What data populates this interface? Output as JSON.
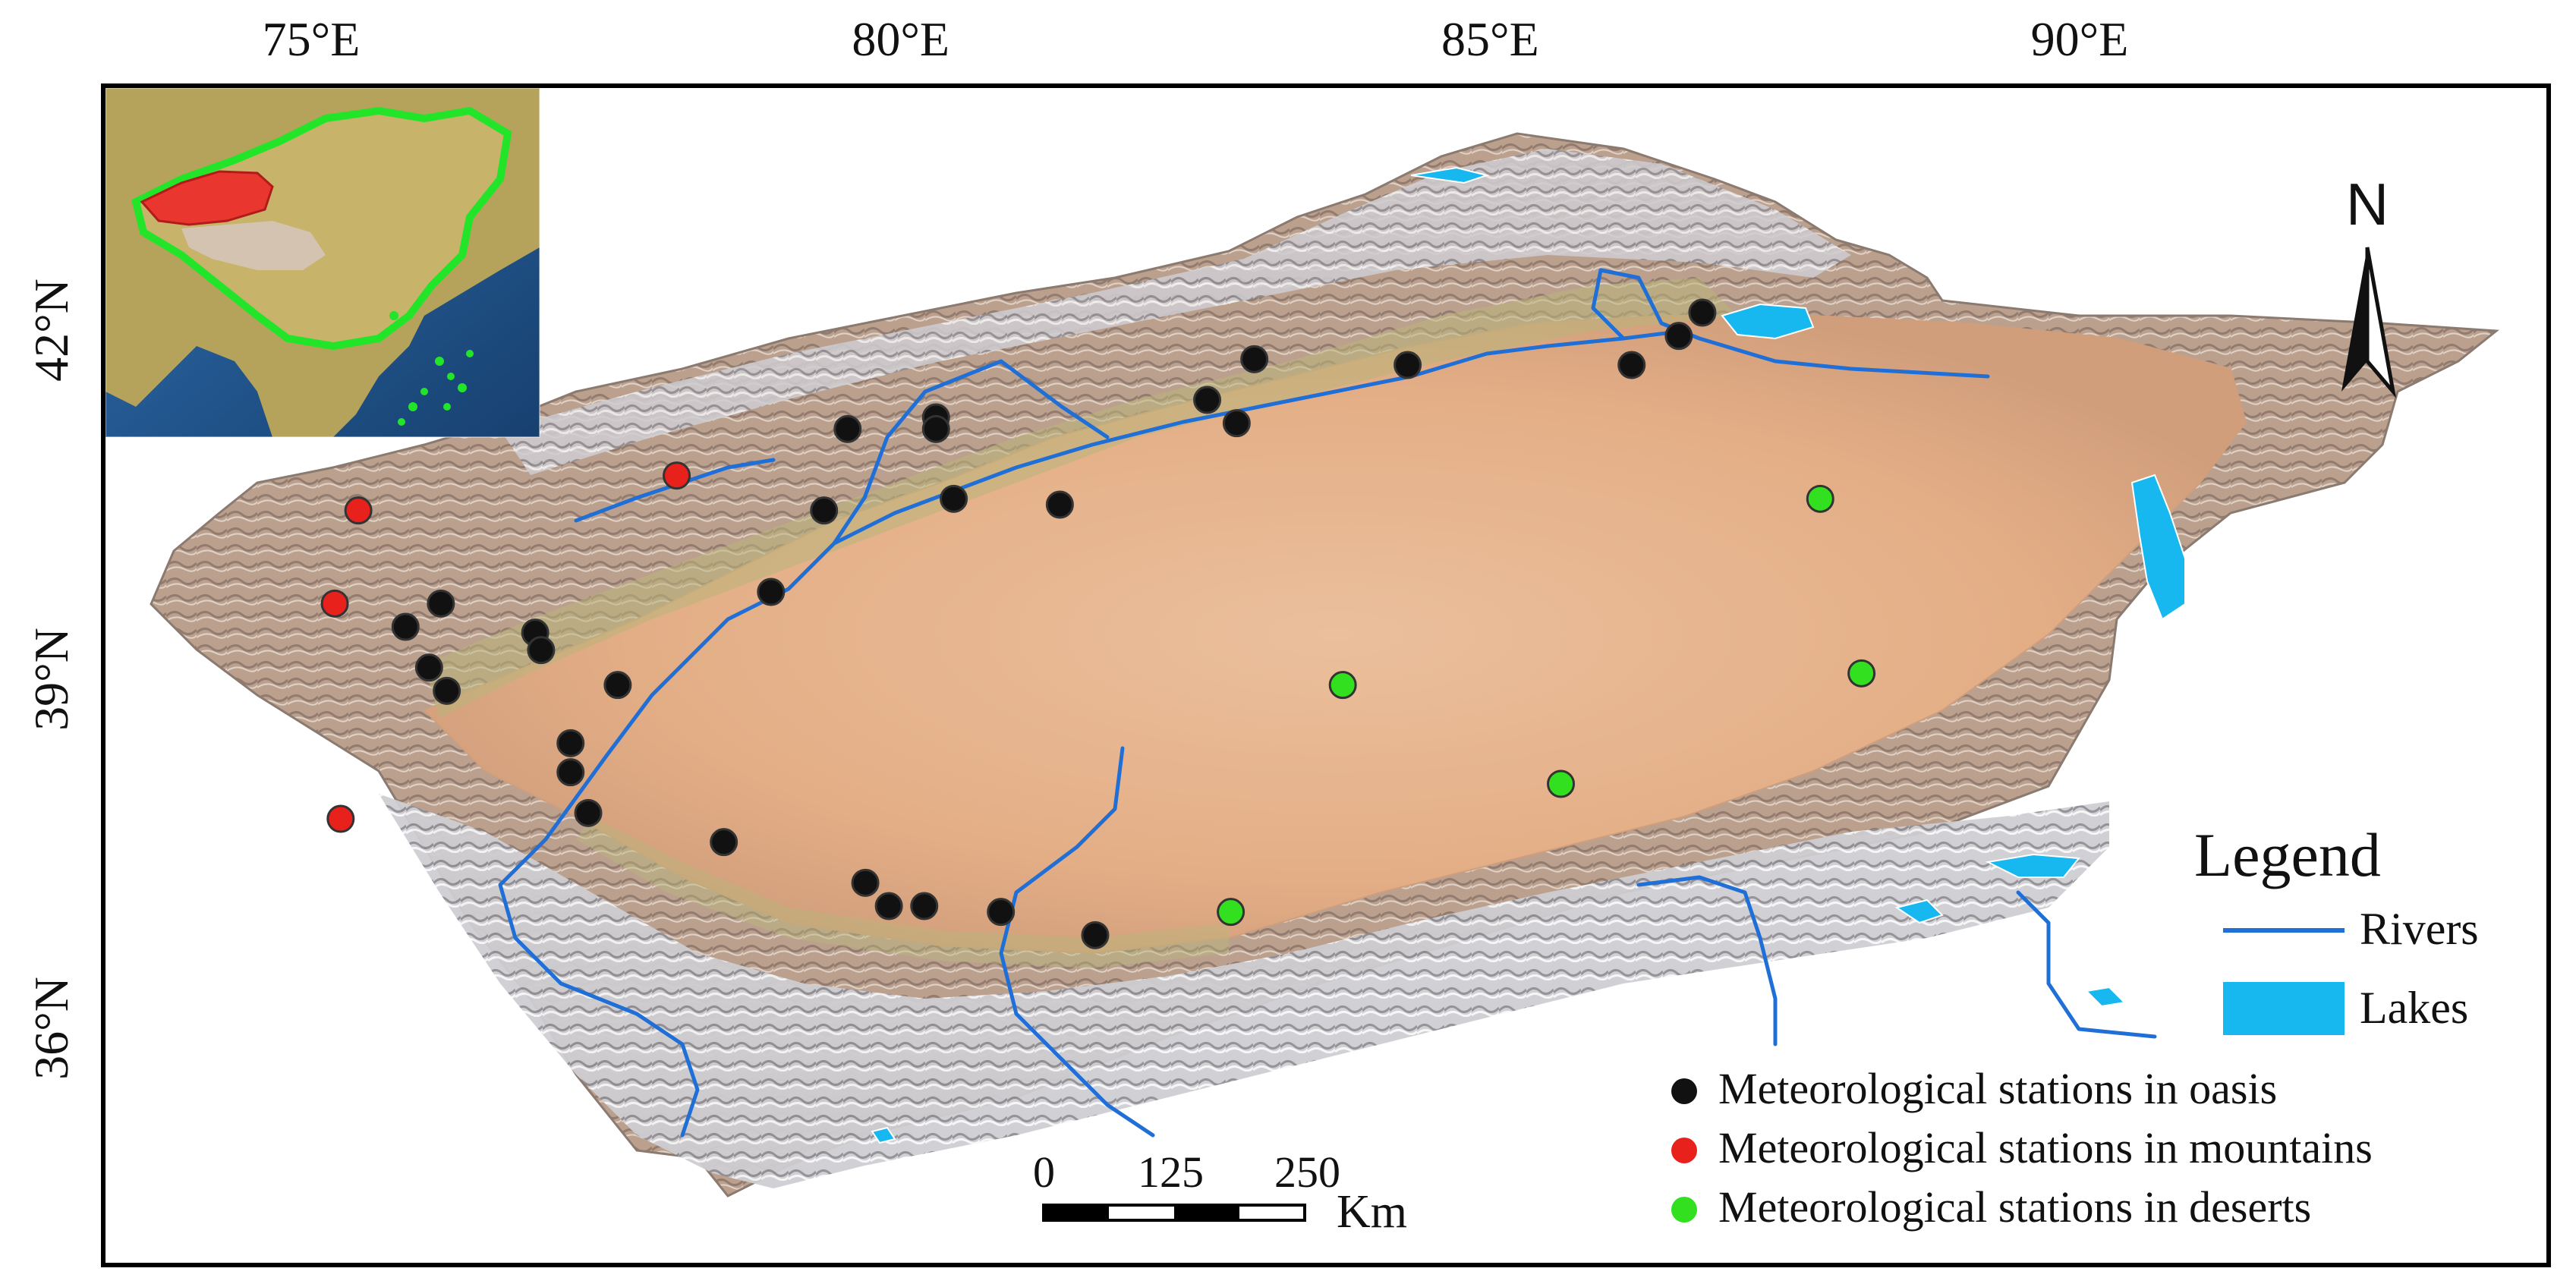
{
  "axes": {
    "longitude_ticks": [
      {
        "value": 75,
        "label": "75°E"
      },
      {
        "value": 80,
        "label": "80°E"
      },
      {
        "value": 85,
        "label": "85°E"
      },
      {
        "value": 90,
        "label": "90°E"
      }
    ],
    "latitude_ticks": [
      {
        "value": 42,
        "label": "42°N"
      },
      {
        "value": 39,
        "label": "39°N"
      },
      {
        "value": 36,
        "label": "36°N"
      }
    ]
  },
  "north_arrow": {
    "label": "N"
  },
  "legend": {
    "title": "Legend",
    "items": [
      {
        "label": "Rivers",
        "symbol": "line",
        "color": "#1f6fd6"
      },
      {
        "label": "Lakes",
        "symbol": "box",
        "color": "#17b7ef"
      },
      {
        "label": "Meteorological stations in oasis",
        "symbol": "dot",
        "color": "#111111"
      },
      {
        "label": "Meteorological stations in mountains",
        "symbol": "dot",
        "color": "#e8211c"
      },
      {
        "label": "Meteorological stations in deserts",
        "symbol": "dot",
        "color": "#33e01f"
      }
    ]
  },
  "scale_bar": {
    "ticks": [
      "0",
      "125",
      "250"
    ],
    "unit": "Km"
  },
  "stations": {
    "oasis": [
      [
        75.8,
        39.45
      ],
      [
        76.1,
        39.65
      ],
      [
        76.9,
        39.4
      ],
      [
        76.95,
        39.25
      ],
      [
        76.0,
        39.1
      ],
      [
        76.15,
        38.9
      ],
      [
        77.2,
        38.45
      ],
      [
        77.2,
        38.2
      ],
      [
        77.35,
        37.85
      ],
      [
        77.6,
        38.95
      ],
      [
        78.5,
        37.6
      ],
      [
        78.9,
        39.75
      ],
      [
        79.35,
        40.45
      ],
      [
        79.55,
        41.15
      ],
      [
        80.3,
        41.25
      ],
      [
        80.3,
        41.15
      ],
      [
        80.45,
        40.55
      ],
      [
        81.35,
        40.5
      ],
      [
        79.7,
        37.25
      ],
      [
        79.9,
        37.05
      ],
      [
        80.2,
        37.05
      ],
      [
        80.85,
        37.0
      ],
      [
        81.65,
        36.8
      ],
      [
        83.0,
        41.75
      ],
      [
        82.6,
        41.4
      ],
      [
        82.85,
        41.2
      ],
      [
        84.3,
        41.7
      ],
      [
        86.2,
        41.7
      ],
      [
        86.6,
        41.95
      ],
      [
        86.8,
        42.15
      ]
    ],
    "mountains": [
      [
        75.4,
        40.45
      ],
      [
        75.2,
        39.65
      ],
      [
        75.25,
        37.8
      ],
      [
        78.1,
        40.75
      ]
    ],
    "deserts": [
      [
        87.8,
        40.55
      ],
      [
        83.75,
        38.95
      ],
      [
        88.15,
        39.05
      ],
      [
        85.6,
        38.1
      ],
      [
        82.8,
        37.0
      ]
    ]
  },
  "colors": {
    "river": "#1f6fd6",
    "lake": "#17b7ef",
    "desert": "#e7b48e",
    "terrain": "#c7a38b"
  }
}
